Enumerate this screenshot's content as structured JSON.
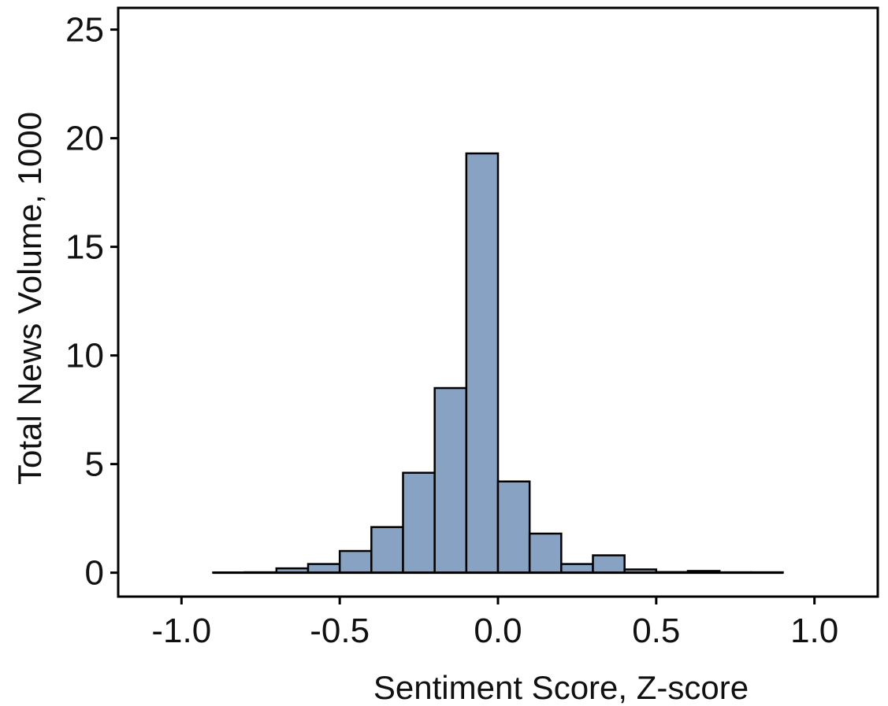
{
  "colors": {
    "bar_fill": "#87a2c2",
    "bar_stroke": "#000000",
    "frame": "#000000",
    "background": "#ffffff"
  },
  "chart_data": {
    "type": "bar",
    "subtype": "histogram",
    "title": "",
    "xlabel": "Sentiment Score, Z-score",
    "ylabel": "Total News Volume, 1000",
    "xlim": [
      -1.2,
      1.2
    ],
    "ylim": [
      -1.1,
      26
    ],
    "bin_width": 0.1,
    "bin_edges": [
      -0.9,
      -0.8,
      -0.7,
      -0.6,
      -0.5,
      -0.4,
      -0.3,
      -0.2,
      -0.1,
      0.0,
      0.1,
      0.2,
      0.3,
      0.4,
      0.5,
      0.6,
      0.7,
      0.8,
      0.9
    ],
    "values": [
      0.01,
      0.02,
      0.2,
      0.4,
      1.0,
      2.1,
      4.6,
      8.5,
      19.3,
      4.2,
      1.8,
      0.4,
      0.8,
      0.15,
      0.03,
      0.08,
      0.02,
      0.02
    ],
    "x_ticks": [
      -1.0,
      -0.5,
      0.0,
      0.5,
      1.0
    ],
    "x_tick_labels": [
      "-1.0",
      "-0.5",
      "0.0",
      "0.5",
      "1.0"
    ],
    "y_ticks": [
      0,
      5,
      10,
      15,
      20,
      25
    ],
    "y_tick_labels": [
      "0",
      "5",
      "10",
      "15",
      "20",
      "25"
    ],
    "grid": false,
    "legend": "none"
  }
}
